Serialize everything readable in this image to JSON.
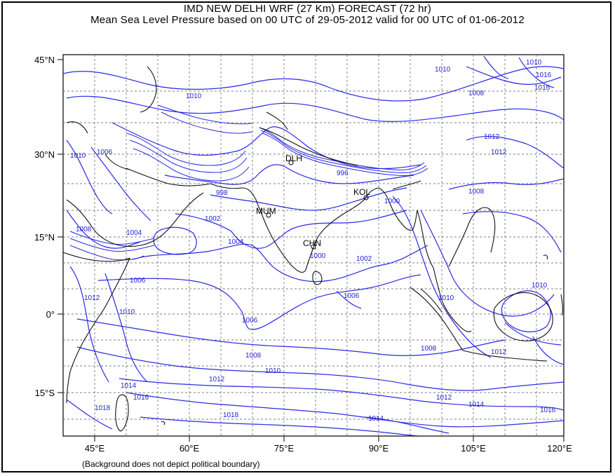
{
  "header": {
    "title": "IMD NEW DELHI  WRF (27 Km)  FORECAST  (72 hr)",
    "subtitle": "Mean Sea Level Pressure based on 00 UTC of 29-05-2012 valid for 00 UTC of 01-06-2012"
  },
  "axes": {
    "lat_labels": [
      "45°N",
      "30°N",
      "15°N",
      "0°",
      "15°S"
    ],
    "lon_labels": [
      "45°E",
      "60°E",
      "75°E",
      "90°E",
      "105°E",
      "120°E"
    ]
  },
  "cities": [
    "DLH",
    "KOL",
    "MUM",
    "CHN"
  ],
  "contour_labels": [
    "1010",
    "1008",
    "1016",
    "1010",
    "1012",
    "1006",
    "996",
    "998",
    "1002",
    "1004",
    "1006",
    "1002",
    "1000",
    "1000",
    "1006",
    "1008",
    "1010",
    "1012",
    "1014",
    "1016",
    "1018",
    "1010",
    "1012",
    "1012",
    "1014",
    "1016",
    "1014",
    "1018",
    "1010",
    "1008",
    "1006",
    "1004",
    "1008",
    "1012",
    "1016",
    "1010",
    "1012",
    "1010",
    "1010",
    "1008"
  ],
  "footer": {
    "note": "(Background does not depict political boundary)"
  },
  "colors": {
    "isobar": "#2a2ae6",
    "coastline": "#111111",
    "grid": "#555555"
  }
}
